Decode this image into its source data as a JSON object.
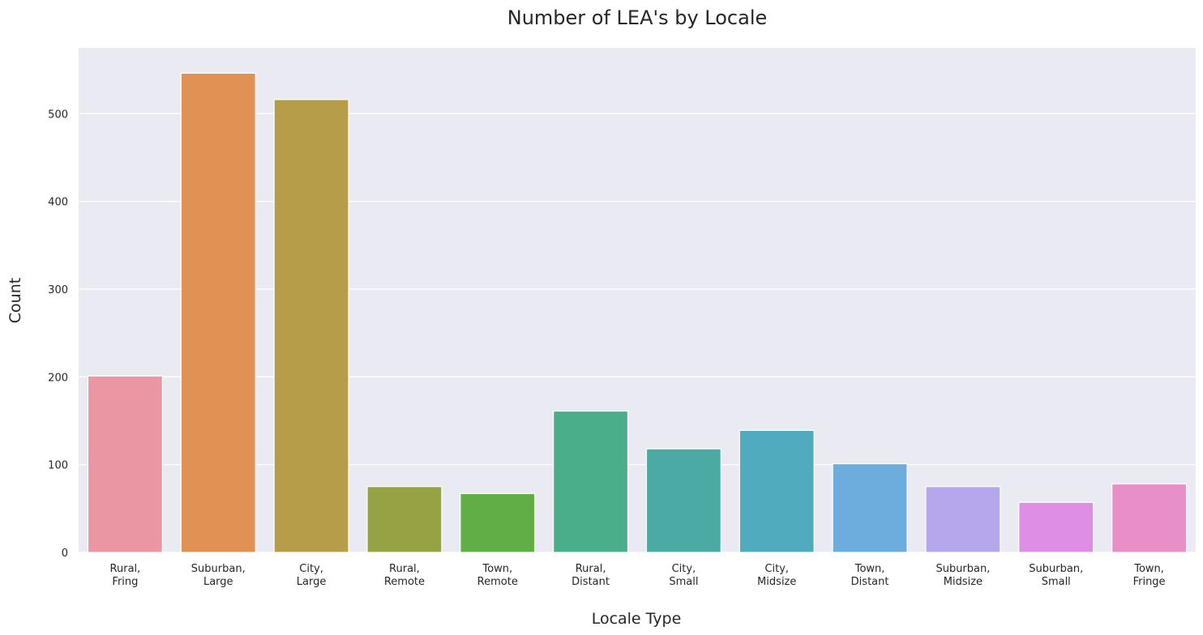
{
  "chart_data": {
    "type": "bar",
    "title": "Number of LEA's by Locale",
    "xlabel": "Locale Type",
    "ylabel": "Count",
    "categories": [
      "Rural,\nFring",
      "Suburban,\nLarge",
      "City,\nLarge",
      "Rural,\nRemote",
      "Town,\nRemote",
      "Rural,\nDistant",
      "City,\nSmall",
      "City,\nMidsize",
      "Town,\nDistant",
      "Suburban,\nMidsize",
      "Suburban,\nSmall",
      "Town,\nFringe"
    ],
    "values": [
      201,
      546,
      516,
      75,
      67,
      161,
      118,
      139,
      101,
      75,
      57,
      78
    ],
    "colors": [
      "#ea96a3",
      "#e19153",
      "#b69d4a",
      "#96a243",
      "#61ae46",
      "#4aae8a",
      "#4caaa5",
      "#4fabbd",
      "#6dadde",
      "#b6a6ec",
      "#df8ee6",
      "#e98fc7"
    ],
    "ylim": [
      0,
      575
    ],
    "yticks": [
      0,
      100,
      200,
      300,
      400,
      500
    ],
    "grid": true,
    "style": {
      "background": "#eaeaf2",
      "grid_color": "#ffffff"
    }
  }
}
